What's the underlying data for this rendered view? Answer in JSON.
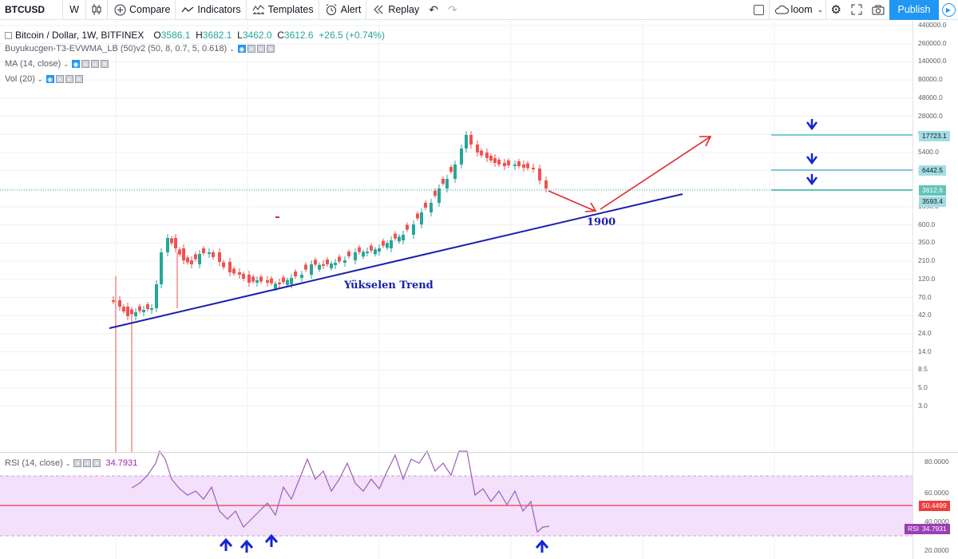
{
  "toolbar": {
    "symbol": "BTCUSD",
    "interval": "W",
    "compare_label": "Compare",
    "indicators_label": "Indicators",
    "templates_label": "Templates",
    "alert_label": "Alert",
    "replay_label": "Replay",
    "layout_name": "loom",
    "publish_label": "Publish"
  },
  "legend": {
    "title": "Bitcoin / Dollar, 1W, BITFINEX",
    "open_label": "O",
    "open": "3586.1",
    "high_label": "H",
    "high": "3682.1",
    "low_label": "L",
    "low": "3462.0",
    "close_label": "C",
    "close": "3612.6",
    "change": "+26.5 (+0.74%)",
    "indicator1": "Buyukucgen-T3-EVWMA_LB (50)v2 (50, 8, 0.7, 5, 0.618)",
    "indicator2": "MA (14, close)",
    "indicator3": "Vol (20)"
  },
  "rsi_legend": {
    "title": "RSI (14, close)",
    "value": "34.7931"
  },
  "annotations": {
    "trend_label": "Yükselen Trend",
    "target_label": "1900"
  },
  "price_scale": {
    "ticks": [
      "440000.0",
      "260000.0",
      "140000.0",
      "80000.0",
      "48000.0",
      "28000.0",
      "9000.0",
      "5400.0",
      "3000.0",
      "1750.0",
      "1050.0",
      "600.0",
      "350.0",
      "210.0",
      "120.0",
      "70.0",
      "42.0",
      "24.0",
      "14.0",
      "8.5",
      "5.0",
      "3.0"
    ],
    "tags": {
      "level1": "17723.1",
      "level2": "6442.5",
      "current": "3612.6",
      "ma": "3593.4"
    }
  },
  "rsi_scale": {
    "ticks": [
      "80.0000",
      "60.0000",
      "40.0000",
      "20.0000"
    ],
    "tags": {
      "level": "50.4499",
      "rsi": "34.7931",
      "rsi_label": "RSI"
    }
  },
  "colors": {
    "up": "#26a69a",
    "down": "#ef5350",
    "trend": "#1a1fae",
    "arrow_red": "#e3262b",
    "level_line": "#7ccbd4",
    "rsi_line": "#9c5fb5",
    "rsi_band": "#f3e0fb",
    "rsi_level": "#f23645"
  }
}
